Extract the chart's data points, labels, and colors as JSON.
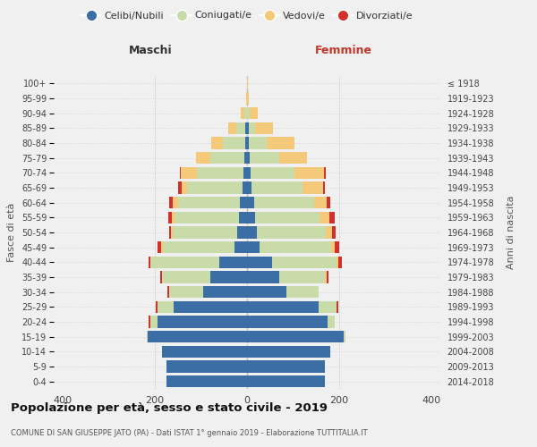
{
  "age_groups": [
    "0-4",
    "5-9",
    "10-14",
    "15-19",
    "20-24",
    "25-29",
    "30-34",
    "35-39",
    "40-44",
    "45-49",
    "50-54",
    "55-59",
    "60-64",
    "65-69",
    "70-74",
    "75-79",
    "80-84",
    "85-89",
    "90-94",
    "95-99",
    "100+"
  ],
  "birth_years": [
    "2014-2018",
    "2009-2013",
    "2004-2008",
    "1999-2003",
    "1994-1998",
    "1989-1993",
    "1984-1988",
    "1979-1983",
    "1974-1978",
    "1969-1973",
    "1964-1968",
    "1959-1963",
    "1954-1958",
    "1949-1953",
    "1944-1948",
    "1939-1943",
    "1934-1938",
    "1929-1933",
    "1924-1928",
    "1919-1923",
    "≤ 1918"
  ],
  "male_celibi": [
    175,
    175,
    185,
    215,
    195,
    160,
    95,
    80,
    60,
    28,
    22,
    18,
    15,
    10,
    8,
    5,
    3,
    3,
    0,
    0,
    0
  ],
  "male_coniugati": [
    0,
    0,
    0,
    3,
    15,
    35,
    75,
    105,
    150,
    155,
    140,
    140,
    135,
    120,
    100,
    75,
    50,
    20,
    5,
    0,
    0
  ],
  "male_vedovi": [
    0,
    0,
    0,
    0,
    0,
    0,
    0,
    0,
    0,
    3,
    3,
    5,
    12,
    12,
    35,
    30,
    25,
    18,
    8,
    1,
    0
  ],
  "male_divorziati": [
    0,
    0,
    0,
    0,
    3,
    3,
    3,
    3,
    3,
    8,
    5,
    8,
    8,
    8,
    3,
    0,
    0,
    0,
    0,
    0,
    0
  ],
  "female_celibi": [
    170,
    170,
    180,
    210,
    175,
    155,
    85,
    70,
    55,
    28,
    22,
    18,
    15,
    10,
    8,
    5,
    3,
    3,
    0,
    0,
    0
  ],
  "female_coniugati": [
    0,
    0,
    0,
    3,
    15,
    40,
    70,
    100,
    140,
    155,
    150,
    140,
    130,
    110,
    95,
    65,
    40,
    15,
    5,
    0,
    0
  ],
  "female_vedovi": [
    0,
    0,
    0,
    0,
    0,
    0,
    0,
    3,
    3,
    8,
    12,
    20,
    28,
    45,
    65,
    60,
    60,
    38,
    18,
    3,
    1
  ],
  "female_divorziati": [
    0,
    0,
    0,
    0,
    0,
    3,
    0,
    3,
    8,
    10,
    8,
    12,
    8,
    5,
    3,
    0,
    0,
    0,
    0,
    0,
    0
  ],
  "color_celibi": "#3a6ea5",
  "color_coniugati": "#c8dba8",
  "color_vedovi": "#f5c97a",
  "color_divorziati": "#d0312d",
  "title": "Popolazione per età, sesso e stato civile - 2019",
  "subtitle": "COMUNE DI SAN GIUSEPPE JATO (PA) - Dati ISTAT 1° gennaio 2019 - Elaborazione TUTTITALIA.IT",
  "xlabel_left": "Maschi",
  "xlabel_right": "Femmine",
  "ylabel_left": "Fasce di età",
  "ylabel_right": "Anni di nascita",
  "xlim": 420,
  "background_color": "#f0f0f0",
  "grid_color": "#cccccc"
}
